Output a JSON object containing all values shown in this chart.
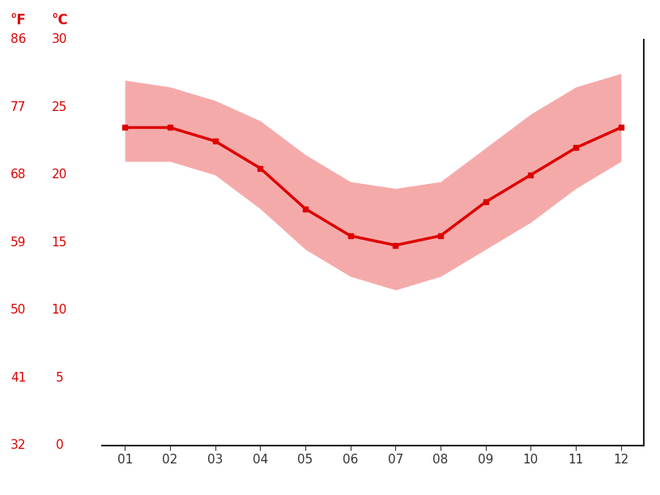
{
  "months": [
    1,
    2,
    3,
    4,
    5,
    6,
    7,
    8,
    9,
    10,
    11,
    12
  ],
  "month_labels": [
    "01",
    "02",
    "03",
    "04",
    "05",
    "06",
    "07",
    "08",
    "09",
    "10",
    "11",
    "12"
  ],
  "avg_temp_c": [
    23.5,
    23.5,
    22.5,
    20.5,
    17.5,
    15.5,
    14.8,
    15.5,
    18.0,
    20.0,
    22.0,
    23.5
  ],
  "max_temp_c": [
    27.0,
    26.5,
    25.5,
    24.0,
    21.5,
    19.5,
    19.0,
    19.5,
    22.0,
    24.5,
    26.5,
    27.5
  ],
  "min_temp_c": [
    21.0,
    21.0,
    20.0,
    17.5,
    14.5,
    12.5,
    11.5,
    12.5,
    14.5,
    16.5,
    19.0,
    21.0
  ],
  "line_color": "#dd0000",
  "fill_color": "#f5aaaa",
  "background_color": "#ffffff",
  "grid_color": "#cccccc",
  "axis_color": "#dd0000",
  "tick_color": "#333333",
  "ylim_c": [
    0,
    30
  ],
  "yticks_c": [
    0,
    5,
    10,
    15,
    20,
    25,
    30
  ],
  "yticks_f": [
    32,
    41,
    50,
    59,
    68,
    77,
    86
  ],
  "ylabel_left": "°F",
  "ylabel_right": "°C",
  "line_width": 2.5,
  "marker_size": 4,
  "marker_style": "s"
}
